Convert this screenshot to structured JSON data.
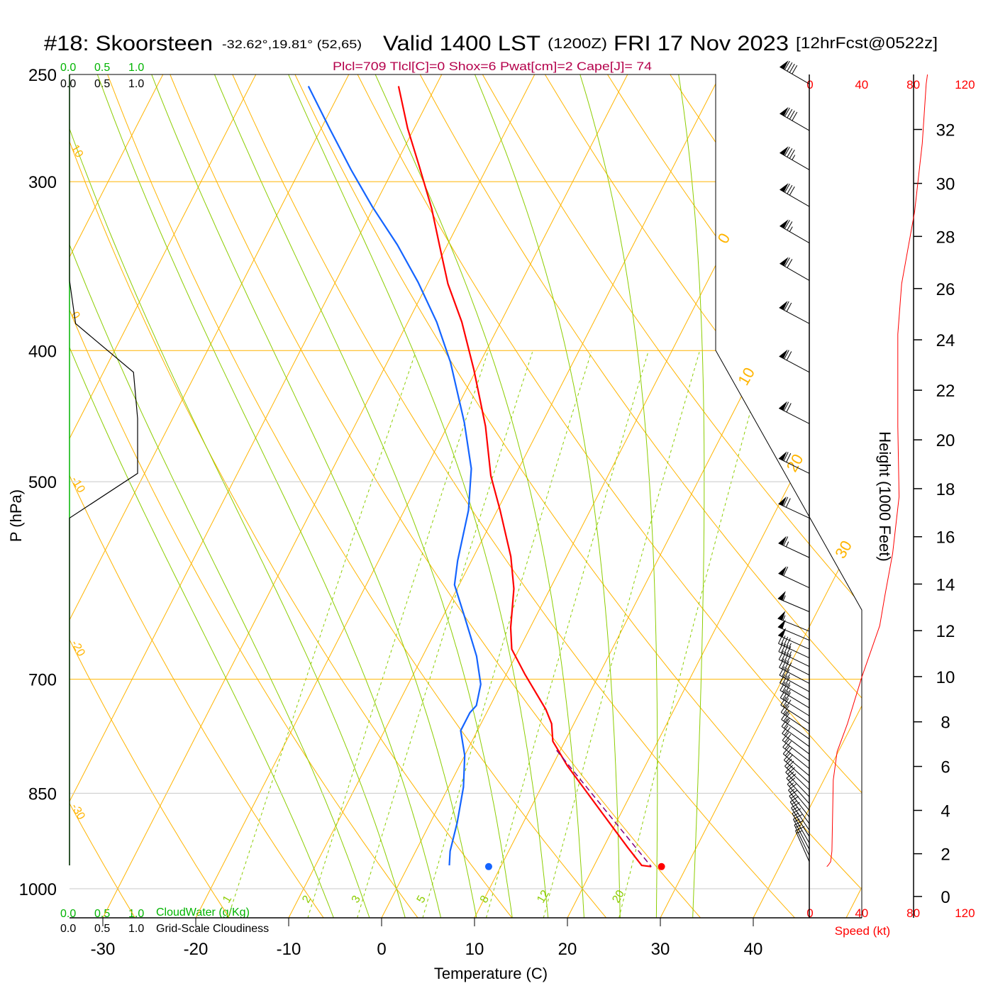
{
  "header": {
    "station": "#18: Skoorsteen",
    "coords": "-32.62°,19.81° (52,65)",
    "valid": "Valid 1400 LST",
    "zulu": "(1200Z)",
    "date": "FRI 17 Nov 2023",
    "forecast": "[12hrFcst@0522z]",
    "params": "Plcl=709 Tlcl[C]=0 Shox=6 Pwat[cm]=2 Cape[J]= 74"
  },
  "colors": {
    "temperature": "#ff0000",
    "dewpoint": "#1464ff",
    "isotherm": "#ffb400",
    "moist": "#8ccd00",
    "params": "#b4004b",
    "cloudwater": "#00b400",
    "speed": "#ff0000",
    "parcel": "#800080"
  },
  "chart_data": {
    "type": "skew-t",
    "xlabel": "Temperature (C)",
    "ylabel": "P (hPa)",
    "pressure_ticks": [
      "250",
      "300",
      "400",
      "500",
      "700",
      "850",
      "1000"
    ],
    "temp_ticks": [
      "-30",
      "-20",
      "-10",
      "0",
      "10",
      "20",
      "30",
      "40"
    ],
    "temperature": [
      [
        255,
        -44.0
      ],
      [
        274,
        -40.7
      ],
      [
        292,
        -37.4
      ],
      [
        314,
        -33.7
      ],
      [
        336,
        -30.6
      ],
      [
        357,
        -27.8
      ],
      [
        381,
        -24.2
      ],
      [
        413,
        -20.3
      ],
      [
        455,
        -15.9
      ],
      [
        495,
        -12.6
      ],
      [
        525,
        -9.7
      ],
      [
        568,
        -6.0
      ],
      [
        600,
        -3.9
      ],
      [
        641,
        -2.1
      ],
      [
        665,
        -0.8
      ],
      [
        694,
        2.0
      ],
      [
        737,
        6.2
      ],
      [
        755,
        7.6
      ],
      [
        778,
        8.7
      ],
      [
        811,
        11.6
      ],
      [
        852,
        15.5
      ],
      [
        894,
        19.3
      ],
      [
        932,
        22.6
      ],
      [
        961,
        25.1
      ],
      [
        963,
        26.2
      ]
    ],
    "dewpoint": [
      [
        255,
        -53.7
      ],
      [
        274,
        -49.1
      ],
      [
        294,
        -44.5
      ],
      [
        313,
        -40.2
      ],
      [
        334,
        -35.4
      ],
      [
        356,
        -31.1
      ],
      [
        381,
        -26.9
      ],
      [
        408,
        -23.2
      ],
      [
        452,
        -18.4
      ],
      [
        489,
        -15.1
      ],
      [
        525,
        -13.1
      ],
      [
        572,
        -11.5
      ],
      [
        596,
        -10.5
      ],
      [
        630,
        -7.6
      ],
      [
        673,
        -4.2
      ],
      [
        706,
        -2.2
      ],
      [
        732,
        -1.5
      ],
      [
        741,
        -1.8
      ],
      [
        764,
        -1.8
      ],
      [
        797,
        0.0
      ],
      [
        841,
        1.6
      ],
      [
        894,
        2.9
      ],
      [
        938,
        3.7
      ],
      [
        961,
        4.4
      ]
    ],
    "parcel": [
      [
        790,
        9.6
      ],
      [
        963,
        26.2
      ]
    ],
    "surface_temperature": {
      "p": 963,
      "T": 27.3
    },
    "surface_dewpoint": {
      "p": 963,
      "T": 8.7
    },
    "isotherm_labels": [
      "0",
      "10",
      "20",
      "30"
    ],
    "dry_adiabat_labels": [
      "10",
      "0",
      "-10",
      "-20",
      "-30"
    ],
    "mixing_ratio_labels": [
      "1",
      "2",
      "3",
      "5",
      "8",
      "12",
      "20"
    ],
    "cloud": {
      "water_label": "CloudWater (g/Kg)",
      "cover_label": "Grid-Scale Cloudiness",
      "scale": [
        "0.0",
        "0.5",
        "1.0"
      ],
      "cloudiness": [
        [
          250,
          0
        ],
        [
          355,
          0
        ],
        [
          382,
          0.09
        ],
        [
          415,
          0.94
        ],
        [
          449,
          1.0
        ],
        [
          493,
          1.0
        ],
        [
          532,
          0
        ],
        [
          961,
          0
        ]
      ],
      "cloud_water_max": 0
    },
    "wind": {
      "speed_label": "Speed (kt)",
      "speed_ticks": [
        "0",
        "40",
        "80",
        "120"
      ],
      "speed_profile": [
        [
          250,
          91
        ],
        [
          254,
          90
        ],
        [
          281,
          87
        ],
        [
          316,
          81
        ],
        [
          357,
          71
        ],
        [
          389,
          68
        ],
        [
          455,
          68
        ],
        [
          513,
          69
        ],
        [
          565,
          64
        ],
        [
          607,
          58
        ],
        [
          639,
          54
        ],
        [
          698,
          40
        ],
        [
          755,
          29
        ],
        [
          792,
          21
        ],
        [
          831,
          18
        ],
        [
          938,
          17
        ],
        [
          955,
          16
        ],
        [
          961,
          14
        ],
        [
          963,
          13
        ]
      ],
      "barbs": [
        {
          "p": 254,
          "dir": 300,
          "spd": 90
        },
        {
          "p": 275,
          "dir": 300,
          "spd": 88
        },
        {
          "p": 294,
          "dir": 300,
          "spd": 85
        },
        {
          "p": 313,
          "dir": 300,
          "spd": 80
        },
        {
          "p": 333,
          "dir": 300,
          "spd": 77
        },
        {
          "p": 355,
          "dir": 300,
          "spd": 72
        },
        {
          "p": 382,
          "dir": 298,
          "spd": 68
        },
        {
          "p": 415,
          "dir": 298,
          "spd": 68
        },
        {
          "p": 453,
          "dir": 297,
          "spd": 68
        },
        {
          "p": 493,
          "dir": 296,
          "spd": 68
        },
        {
          "p": 532,
          "dir": 295,
          "spd": 68
        },
        {
          "p": 569,
          "dir": 295,
          "spd": 64
        },
        {
          "p": 599,
          "dir": 295,
          "spd": 60
        },
        {
          "p": 624,
          "dir": 293,
          "spd": 56
        },
        {
          "p": 645,
          "dir": 292,
          "spd": 54
        },
        {
          "p": 655,
          "dir": 293,
          "spd": 52
        },
        {
          "p": 665,
          "dir": 294,
          "spd": 50
        },
        {
          "p": 675,
          "dir": 295,
          "spd": 47
        },
        {
          "p": 685,
          "dir": 296,
          "spd": 44
        },
        {
          "p": 695,
          "dir": 297,
          "spd": 41
        },
        {
          "p": 705,
          "dir": 298,
          "spd": 39
        },
        {
          "p": 715,
          "dir": 299,
          "spd": 37
        },
        {
          "p": 725,
          "dir": 300,
          "spd": 35
        },
        {
          "p": 735,
          "dir": 301,
          "spd": 33
        },
        {
          "p": 745,
          "dir": 302,
          "spd": 31
        },
        {
          "p": 755,
          "dir": 303,
          "spd": 29
        },
        {
          "p": 765,
          "dir": 304,
          "spd": 27
        },
        {
          "p": 775,
          "dir": 305,
          "spd": 25
        },
        {
          "p": 785,
          "dir": 306,
          "spd": 22
        },
        {
          "p": 795,
          "dir": 307,
          "spd": 21
        },
        {
          "p": 805,
          "dir": 308,
          "spd": 20
        },
        {
          "p": 815,
          "dir": 309,
          "spd": 19
        },
        {
          "p": 825,
          "dir": 310,
          "spd": 18
        },
        {
          "p": 835,
          "dir": 312,
          "spd": 18
        },
        {
          "p": 845,
          "dir": 314,
          "spd": 18
        },
        {
          "p": 855,
          "dir": 316,
          "spd": 18
        },
        {
          "p": 865,
          "dir": 318,
          "spd": 18
        },
        {
          "p": 875,
          "dir": 320,
          "spd": 17
        },
        {
          "p": 885,
          "dir": 322,
          "spd": 17
        },
        {
          "p": 895,
          "dir": 324,
          "spd": 17
        },
        {
          "p": 905,
          "dir": 326,
          "spd": 17
        },
        {
          "p": 915,
          "dir": 328,
          "spd": 17
        },
        {
          "p": 925,
          "dir": 330,
          "spd": 17
        },
        {
          "p": 935,
          "dir": 332,
          "spd": 17
        },
        {
          "p": 945,
          "dir": 334,
          "spd": 16
        },
        {
          "p": 955,
          "dir": 336,
          "spd": 15
        }
      ]
    },
    "height": {
      "label": "Height (1000 Feet)",
      "ticks": [
        "0",
        "2",
        "4",
        "6",
        "8",
        "10",
        "12",
        "14",
        "16",
        "18",
        "20",
        "22",
        "24",
        "26",
        "28",
        "30",
        "32"
      ]
    }
  }
}
